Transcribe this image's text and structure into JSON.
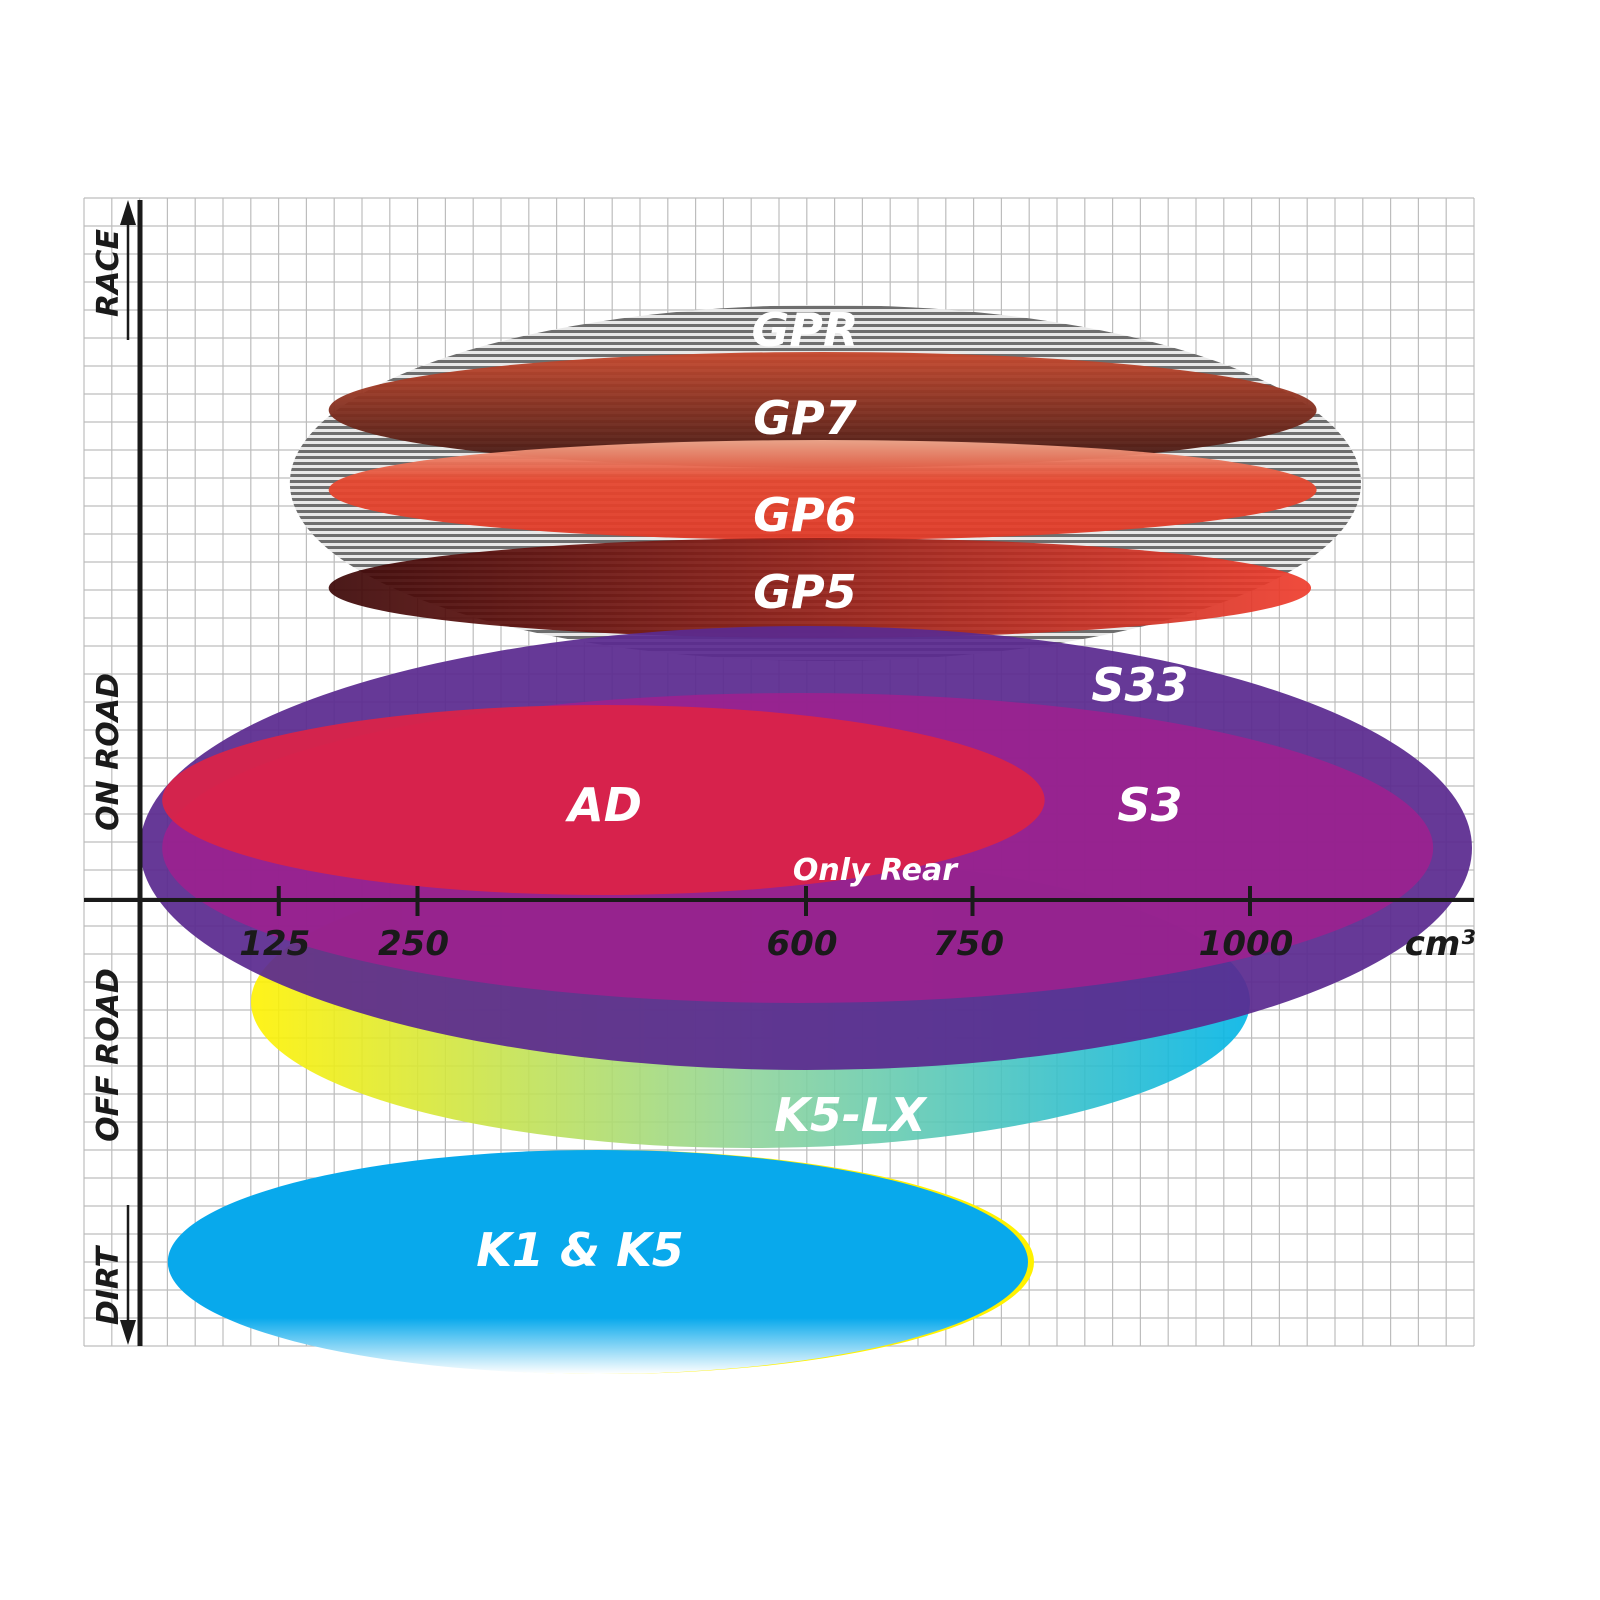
{
  "chart_data": {
    "type": "range-ellipses",
    "x_unit": "cm³",
    "x_ticks": [
      125,
      250,
      600,
      750,
      1000
    ],
    "y_categories": [
      "RACE",
      "ON ROAD",
      "OFF ROAD",
      "DIRT"
    ],
    "grid": true,
    "series": [
      {
        "name": "GPR",
        "cc_range": [
          135,
          1100
        ],
        "color": "#9a9a9a"
      },
      {
        "name": "GP7",
        "cc_range": [
          170,
          1060
        ],
        "color": "#7a3524"
      },
      {
        "name": "GP6",
        "cc_range": [
          170,
          1060
        ],
        "color": "#e4472f"
      },
      {
        "name": "GP5",
        "cc_range": [
          170,
          1055
        ],
        "color": "#9b1a14"
      },
      {
        "name": "S33",
        "cc_range": [
          0,
          1200
        ],
        "color": "#5a2a8f"
      },
      {
        "name": "S3",
        "cc_range": [
          20,
          1165
        ],
        "color": "#a0208e"
      },
      {
        "name": "AD",
        "cc_range": [
          20,
          815
        ],
        "color": "#dc2346"
      },
      {
        "name": "K5-LX",
        "cc_range": [
          100,
          1000
        ],
        "color": "#1bb8d8",
        "note": "Only Rear"
      },
      {
        "name": "K1 & K5",
        "cc_range": [
          25,
          800
        ],
        "color": "#0aa8ea"
      }
    ]
  }
}
